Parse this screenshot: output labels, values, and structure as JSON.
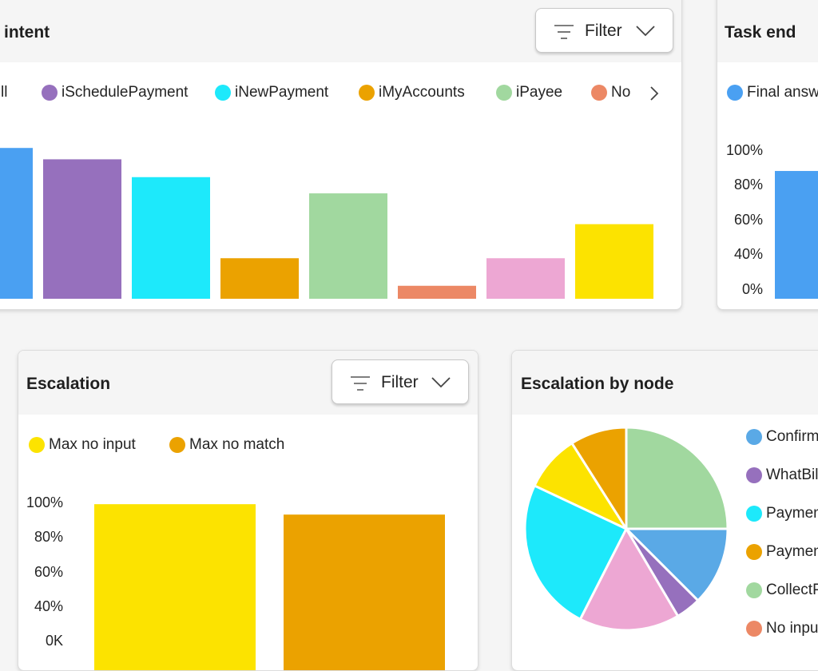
{
  "intent_card": {
    "title": "intent",
    "filter_label": "Filter",
    "legend": [
      {
        "label": "ll",
        "color": "#4aa0f2"
      },
      {
        "label": "iSchedulePayment",
        "color": "#9670bd"
      },
      {
        "label": "iNewPayment",
        "color": "#1de9fb"
      },
      {
        "label": "iMyAccounts",
        "color": "#eba200"
      },
      {
        "label": "iPayee",
        "color": "#a1d89f"
      },
      {
        "label": "No",
        "color": "#ec8865"
      }
    ],
    "legend_next_icon": "chevron-right-icon",
    "chart_data": {
      "type": "bar",
      "categories": [
        "ll",
        "iSchedulePayment",
        "iNewPayment",
        "iMyAccounts",
        "iPayee",
        "No",
        "",
        ""
      ],
      "values": [
        93,
        86,
        75,
        25,
        65,
        8,
        25,
        46
      ],
      "colors": [
        "#4aa0f2",
        "#9670bd",
        "#1de9fb",
        "#eba200",
        "#a1d89f",
        "#ec8865",
        "#eda7d3",
        "#fce300"
      ],
      "ylim": [
        0,
        100
      ]
    }
  },
  "task_end_card": {
    "title": "Task end",
    "legend": [
      {
        "label": "Final answe",
        "color": "#4aa0f2"
      }
    ],
    "y_ticks": [
      "100%",
      "80%",
      "60%",
      "40%",
      "0%"
    ],
    "chart_data": {
      "type": "bar",
      "categories": [
        "Final answe"
      ],
      "values": [
        86
      ],
      "colors": [
        "#4aa0f2"
      ],
      "ylim": [
        0,
        100
      ]
    }
  },
  "escalation_card": {
    "title": "Escalation",
    "filter_label": "Filter",
    "legend": [
      {
        "label": "Max no input",
        "color": "#fce300"
      },
      {
        "label": "Max no match",
        "color": "#eba200"
      }
    ],
    "y_ticks": [
      "100%",
      "80%",
      "60%",
      "40%",
      "0K"
    ],
    "chart_data": {
      "type": "bar",
      "categories": [
        "Max no input",
        "Max no match"
      ],
      "values": [
        99,
        93
      ],
      "colors": [
        "#fce300",
        "#eba200"
      ],
      "ylim": [
        0,
        100
      ]
    }
  },
  "escalation_node_card": {
    "title": "Escalation by node",
    "legend": [
      {
        "label": "Confirm",
        "color": "#5aa9e6"
      },
      {
        "label": "WhatBil",
        "color": "#9670bd"
      },
      {
        "label": "Paymen",
        "color": "#1de9fb"
      },
      {
        "label": "Paymen",
        "color": "#eba200"
      },
      {
        "label": "CollectP",
        "color": "#a1d89f"
      },
      {
        "label": "No inpu",
        "color": "#ec8865"
      }
    ],
    "chart_data": {
      "type": "pie",
      "labels": [
        "CollectP",
        "Confirm",
        "WhatBil",
        "",
        "Paymen",
        "",
        "Paymen"
      ],
      "values": [
        25,
        12.5,
        4,
        16,
        24.5,
        9,
        9
      ],
      "colors": [
        "#a1d89f",
        "#5aa9e6",
        "#9670bd",
        "#eda7d3",
        "#1de9fb",
        "#fce300",
        "#eba200"
      ]
    }
  }
}
